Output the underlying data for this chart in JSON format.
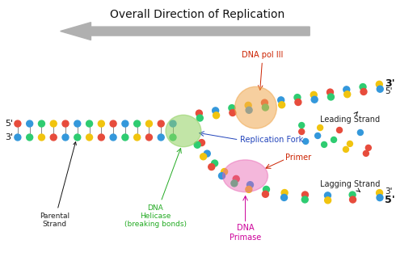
{
  "title": "Overall Direction of Replication",
  "bg_color": "#ffffff",
  "dna_colors": [
    "#e74c3c",
    "#3498db",
    "#2ecc71",
    "#f1c40f"
  ],
  "arrow_color": "#b0b0b0",
  "helicase_color": "#90d060",
  "helicase_alpha": 0.55,
  "pol_color": "#f0a850",
  "pol_alpha": 0.55,
  "primase_color": "#e860b0",
  "primase_alpha": 0.45,
  "connector_color": "#888888",
  "labels": {
    "dna_pol": "DNA pol III",
    "replication_fork": "Replication Fork",
    "helicase": "DNA\nHelicase\n(breaking bonds)",
    "primer": "Primer",
    "primase": "DNA\nPrimase",
    "leading": "Leading Strand",
    "lagging": "Lagging Strand",
    "parental": "Parental\nStrand"
  },
  "colors": {
    "dna_pol_label": "#cc2200",
    "replication_fork_label": "#2244bb",
    "helicase_label": "#22aa22",
    "primer_label": "#cc2200",
    "primase_label": "#cc0099",
    "text": "#222222"
  }
}
